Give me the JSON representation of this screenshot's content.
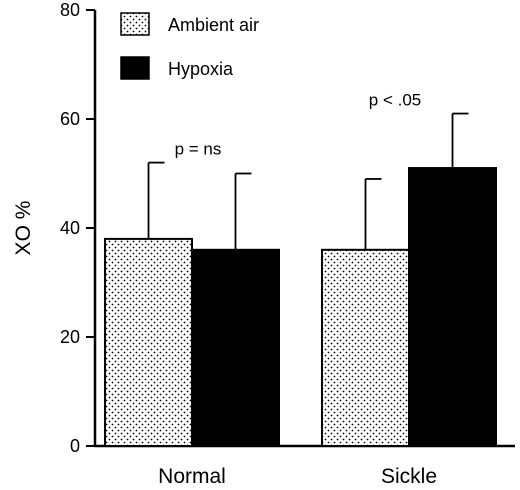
{
  "chart_data": {
    "type": "bar",
    "categories": [
      "Normal",
      "Sickle"
    ],
    "series": [
      {
        "name": "Ambient air",
        "values": [
          38,
          36
        ],
        "errors": [
          14,
          13
        ],
        "pattern": "dotted"
      },
      {
        "name": "Hypoxia",
        "values": [
          36,
          51
        ],
        "errors": [
          14,
          10
        ],
        "color": "#000000"
      }
    ],
    "xlabel": "",
    "ylabel": "XO %",
    "ylim": [
      0,
      80
    ],
    "yticks": [
      0,
      20,
      40,
      60,
      80
    ],
    "grid": false,
    "legend": "top-left",
    "annotations": [
      {
        "text": "p = ns",
        "category": "Normal"
      },
      {
        "text": "p < .05",
        "category": "Sickle"
      }
    ]
  }
}
